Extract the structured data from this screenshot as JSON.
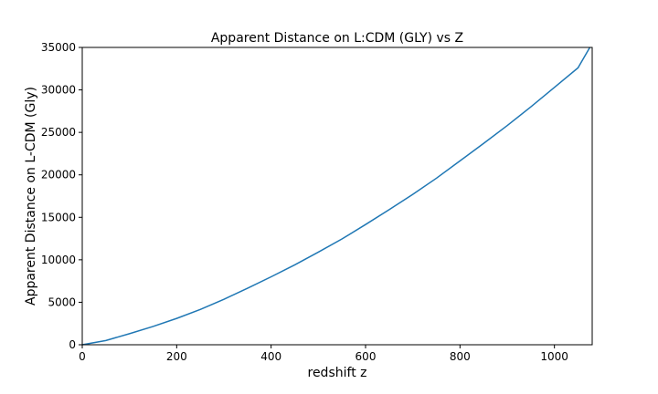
{
  "chart_data": {
    "type": "line",
    "title": "Apparent Distance on L:CDM (GLY) vs Z",
    "xlabel": "redshift z",
    "ylabel": "Apparent Distance on L-CDM (Gly)",
    "xlim": [
      0,
      1080
    ],
    "ylim": [
      0,
      35000
    ],
    "xticks": [
      0,
      200,
      400,
      600,
      800,
      1000
    ],
    "yticks": [
      0,
      5000,
      10000,
      15000,
      20000,
      25000,
      30000,
      35000
    ],
    "grid": false,
    "line_color": "#1f77b4",
    "series": [
      {
        "x": [
          0,
          50,
          100,
          150,
          200,
          250,
          300,
          350,
          400,
          450,
          500,
          550,
          600,
          650,
          700,
          750,
          800,
          850,
          900,
          950,
          1000,
          1050,
          1075
        ],
        "y": [
          0,
          500,
          1300,
          2150,
          3100,
          4150,
          5350,
          6650,
          8000,
          9400,
          10900,
          12450,
          14150,
          15900,
          17700,
          19600,
          21650,
          23700,
          25800,
          28000,
          30300,
          32600,
          35000
        ]
      }
    ]
  }
}
